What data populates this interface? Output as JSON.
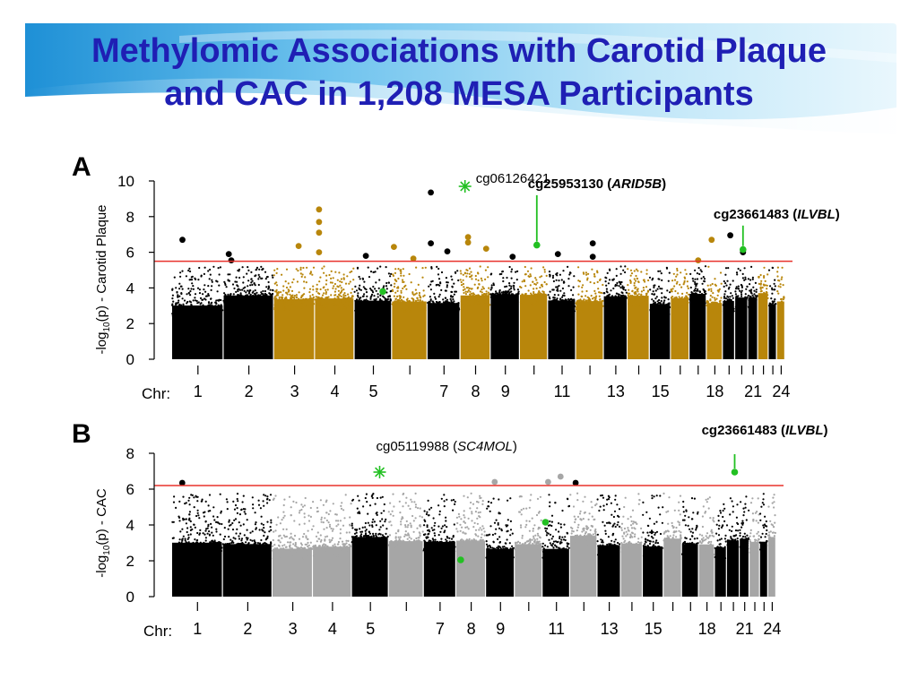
{
  "slide": {
    "title_line1": "Methylomic Associations with Carotid Plaque",
    "title_line2": "and CAC in 1,208 MESA Participants"
  },
  "colors": {
    "title": "#1f1fb4",
    "banner_light": "#e8f6fd",
    "banner_dark": "#1e90d6",
    "chrom_dark": "#000000",
    "chrom_gold": "#b8860b",
    "chrom_gray": "#a6a6a6",
    "threshold": "#e8322c",
    "highlight": "#22c022"
  },
  "chart_data": [
    {
      "panel_label": "A",
      "type": "scatter",
      "subtype": "manhattan",
      "ylabel": "-log10(p) - Carotid Plaque",
      "ylabel_prefix": "-log",
      "ylabel_sub": "10",
      "ylabel_suffix": "(p) - Carotid Plaque",
      "xlabel": "Chr:",
      "ylim": [
        0,
        10
      ],
      "yticks": [
        0,
        2,
        4,
        6,
        8,
        10
      ],
      "threshold": 5.5,
      "x_tick_labels": [
        "1",
        "2",
        "3",
        "4",
        "5",
        "7",
        "8",
        "9",
        "11",
        "13",
        "15",
        "18",
        "21",
        "24"
      ],
      "x_tick_label_chroms": [
        1,
        2,
        3,
        4,
        5,
        7,
        8,
        9,
        11,
        13,
        15,
        18,
        21,
        24
      ],
      "chromosome_colors": [
        "dark",
        "dark",
        "gold",
        "gold",
        "dark",
        "gold",
        "dark",
        "gold",
        "dark",
        "gold",
        "dark",
        "gold",
        "dark",
        "gold",
        "dark",
        "gold",
        "dark",
        "gold",
        "dark",
        "dark",
        "dark",
        "gold",
        "dark",
        "gold"
      ],
      "top_hits": [
        {
          "chrom": 1,
          "pos": 0.2,
          "p": 6.7,
          "color": "dark"
        },
        {
          "chrom": 2,
          "pos": 0.1,
          "p": 5.9,
          "color": "dark"
        },
        {
          "chrom": 2,
          "pos": 0.15,
          "p": 5.55,
          "color": "dark"
        },
        {
          "chrom": 3,
          "pos": 0.6,
          "p": 6.35,
          "color": "gold"
        },
        {
          "chrom": 4,
          "pos": 0.1,
          "p": 8.4,
          "color": "gold"
        },
        {
          "chrom": 4,
          "pos": 0.1,
          "p": 7.7,
          "color": "gold"
        },
        {
          "chrom": 4,
          "pos": 0.1,
          "p": 7.1,
          "color": "gold"
        },
        {
          "chrom": 4,
          "pos": 0.1,
          "p": 6.0,
          "color": "gold"
        },
        {
          "chrom": 5,
          "pos": 0.3,
          "p": 5.8,
          "color": "dark"
        },
        {
          "chrom": 6,
          "pos": 0.05,
          "p": 6.3,
          "color": "gold"
        },
        {
          "chrom": 6,
          "pos": 0.6,
          "p": 5.65,
          "color": "gold"
        },
        {
          "chrom": 7,
          "pos": 0.1,
          "p": 9.35,
          "color": "dark"
        },
        {
          "chrom": 7,
          "pos": 0.1,
          "p": 6.5,
          "color": "dark"
        },
        {
          "chrom": 7,
          "pos": 0.6,
          "p": 6.05,
          "color": "dark"
        },
        {
          "chrom": 8,
          "pos": 0.25,
          "p": 6.85,
          "color": "gold"
        },
        {
          "chrom": 8,
          "pos": 0.25,
          "p": 6.55,
          "color": "gold"
        },
        {
          "chrom": 8,
          "pos": 0.85,
          "p": 6.2,
          "color": "gold"
        },
        {
          "chrom": 9,
          "pos": 0.75,
          "p": 5.75,
          "color": "dark"
        },
        {
          "chrom": 11,
          "pos": 0.35,
          "p": 5.9,
          "color": "dark"
        },
        {
          "chrom": 12,
          "pos": 0.6,
          "p": 6.5,
          "color": "dark"
        },
        {
          "chrom": 12,
          "pos": 0.6,
          "p": 5.75,
          "color": "dark"
        },
        {
          "chrom": 17,
          "pos": 0.5,
          "p": 5.55,
          "color": "gold"
        },
        {
          "chrom": 18,
          "pos": 0.3,
          "p": 6.7,
          "color": "gold"
        },
        {
          "chrom": 19,
          "pos": 0.6,
          "p": 6.95,
          "color": "dark"
        },
        {
          "chrom": 20,
          "pos": 0.6,
          "p": 6.0,
          "color": "dark"
        }
      ],
      "highlights": [
        {
          "label": "cg06126421",
          "gene": "",
          "chrom": 8,
          "pos": 0.15,
          "p": 9.7,
          "marker": "star",
          "label_bold": false
        },
        {
          "label": "cg25953130",
          "gene": "ARID5B",
          "chrom": 10,
          "pos": 0.6,
          "p": 6.4,
          "marker": "dot",
          "label_bold": true
        },
        {
          "label": "cg23661483",
          "gene": "ILVBL",
          "chrom": 20,
          "pos": 0.6,
          "p": 6.15,
          "marker": "dot",
          "label_bold": true
        },
        {
          "label": "",
          "gene": "",
          "chrom": 5,
          "pos": 0.75,
          "p": 3.8,
          "marker": "dot",
          "label_bold": false
        }
      ]
    },
    {
      "panel_label": "B",
      "type": "scatter",
      "subtype": "manhattan",
      "ylabel": "-log10(p) - CAC",
      "ylabel_prefix": "-log",
      "ylabel_sub": "10",
      "ylabel_suffix": "(p)  -  CAC",
      "xlabel": "Chr:",
      "ylim": [
        0,
        8
      ],
      "yticks": [
        0,
        2,
        4,
        6,
        8
      ],
      "threshold": 6.2,
      "x_tick_labels": [
        "1",
        "2",
        "3",
        "4",
        "5",
        "7",
        "8",
        "9",
        "11",
        "13",
        "15",
        "18",
        "21",
        "24"
      ],
      "x_tick_label_chroms": [
        1,
        2,
        3,
        4,
        5,
        7,
        8,
        9,
        11,
        13,
        15,
        18,
        21,
        24
      ],
      "chromosome_colors": [
        "dark",
        "dark",
        "gray",
        "gray",
        "dark",
        "gray",
        "dark",
        "gray",
        "dark",
        "gray",
        "dark",
        "gray",
        "dark",
        "gray",
        "dark",
        "gray",
        "dark",
        "gray",
        "dark",
        "dark",
        "dark",
        "gray",
        "dark",
        "gray"
      ],
      "top_hits": [
        {
          "chrom": 1,
          "pos": 0.2,
          "p": 6.35,
          "color": "dark"
        },
        {
          "chrom": 9,
          "pos": 0.3,
          "p": 6.4,
          "color": "gray"
        },
        {
          "chrom": 11,
          "pos": 0.2,
          "p": 6.4,
          "color": "gray"
        },
        {
          "chrom": 11,
          "pos": 0.65,
          "p": 6.7,
          "color": "gray"
        },
        {
          "chrom": 12,
          "pos": 0.2,
          "p": 6.35,
          "color": "dark"
        }
      ],
      "highlights": [
        {
          "label": "cg05119988",
          "gene": "SC4MOL",
          "chrom": 5,
          "pos": 0.75,
          "p": 6.95,
          "marker": "star",
          "label_bold": false
        },
        {
          "label": "cg23661483",
          "gene": "ILVBL",
          "chrom": 20,
          "pos": 0.6,
          "p": 6.95,
          "marker": "dot",
          "label_bold": true
        },
        {
          "label": "",
          "gene": "",
          "chrom": 8,
          "pos": 0.15,
          "p": 2.05,
          "marker": "dot",
          "label_bold": false
        },
        {
          "label": "",
          "gene": "",
          "chrom": 11,
          "pos": 0.1,
          "p": 4.15,
          "marker": "dot",
          "label_bold": false
        }
      ]
    }
  ]
}
